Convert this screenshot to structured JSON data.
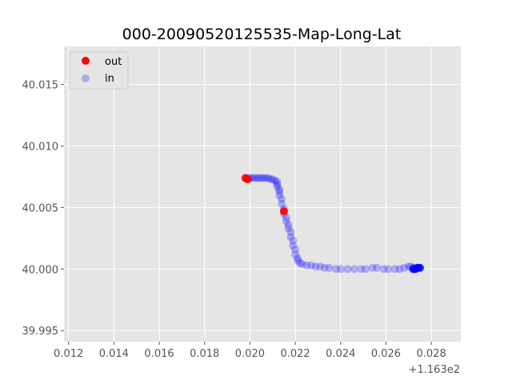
{
  "chart_data": {
    "type": "scatter",
    "title": "000-20090520125535-Map-Long-Lat",
    "xlabel": "",
    "ylabel": "",
    "x_offset_label": "+1.163e2",
    "xlim": [
      0.0118,
      0.0293
    ],
    "ylim": [
      39.9941,
      40.0181
    ],
    "x_ticks": [
      0.012,
      0.014,
      0.016,
      0.018,
      0.02,
      0.022,
      0.024,
      0.026,
      0.028
    ],
    "x_tick_labels": [
      "0.012",
      "0.014",
      "0.016",
      "0.018",
      "0.020",
      "0.022",
      "0.024",
      "0.026",
      "0.028"
    ],
    "y_ticks": [
      39.995,
      40.0,
      40.005,
      40.01,
      40.015
    ],
    "y_tick_labels": [
      "39.995",
      "40.000",
      "40.005",
      "40.010",
      "40.015"
    ],
    "grid": true,
    "legend_position": "top-left",
    "background": "#e5e5e5",
    "series": [
      {
        "name": "in",
        "color": "#0000ff",
        "alpha": 0.25,
        "x": [
          0.0199,
          0.02,
          0.0201,
          0.0202,
          0.0203,
          0.0204,
          0.0205,
          0.0206,
          0.0207,
          0.0208,
          0.0209,
          0.021,
          0.0211,
          0.0212,
          0.0212,
          0.0212,
          0.0213,
          0.0213,
          0.0213,
          0.0214,
          0.0214,
          0.0215,
          0.0215,
          0.0216,
          0.0216,
          0.0217,
          0.0217,
          0.0218,
          0.0218,
          0.0219,
          0.0219,
          0.022,
          0.022,
          0.0221,
          0.0221,
          0.0222,
          0.0223,
          0.0225,
          0.0227,
          0.0229,
          0.0231,
          0.0233,
          0.0235,
          0.0238,
          0.024,
          0.0243,
          0.0246,
          0.0249,
          0.0251,
          0.0254,
          0.0256,
          0.0259,
          0.0261,
          0.0264,
          0.0266,
          0.0268,
          0.027,
          0.0271,
          0.0272,
          0.0273,
          0.0274
        ],
        "y": [
          40.0074,
          40.0074,
          40.0074,
          40.0074,
          40.0074,
          40.0074,
          40.0074,
          40.0074,
          40.0074,
          40.0074,
          40.0073,
          40.0073,
          40.0072,
          40.0071,
          40.0069,
          40.0067,
          40.0065,
          40.0063,
          40.006,
          40.0057,
          40.0053,
          40.0049,
          40.0045,
          40.0042,
          40.0039,
          40.0036,
          40.0033,
          40.003,
          40.0026,
          40.0023,
          40.0019,
          40.0016,
          40.0012,
          40.0009,
          40.0007,
          40.0005,
          40.0004,
          40.0003,
          40.0003,
          40.0002,
          40.0002,
          40.0001,
          40.0001,
          40.0,
          40.0,
          40.0,
          40.0,
          40.0,
          40.0,
          40.0001,
          40.0001,
          40.0,
          40.0,
          40.0,
          40.0,
          40.0001,
          40.0002,
          40.0002,
          40.0001,
          40.0001,
          40.0001
        ]
      },
      {
        "name": "in",
        "color": "#0000ff",
        "alpha": 0.85,
        "show_in_legend": false,
        "x": [
          0.0272,
          0.0273,
          0.0274,
          0.0275
        ],
        "y": [
          40.0,
          40.0,
          40.0001,
          40.0001
        ]
      },
      {
        "name": "out",
        "color": "#ff0000",
        "alpha": 0.9,
        "x": [
          0.0198,
          0.0199,
          0.0215
        ],
        "y": [
          40.0074,
          40.0073,
          40.0047
        ]
      }
    ]
  }
}
